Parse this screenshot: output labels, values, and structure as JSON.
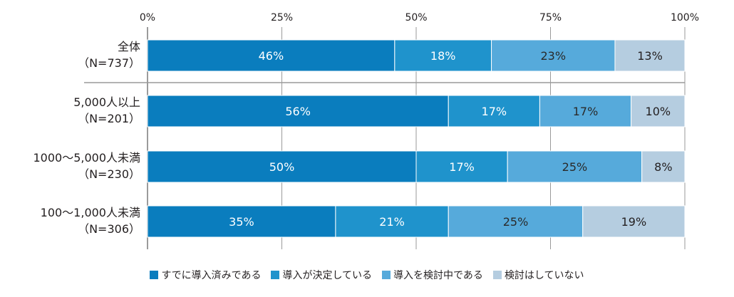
{
  "chart_data": {
    "type": "bar",
    "orientation": "horizontal",
    "stacked": true,
    "xlim": [
      0,
      100
    ],
    "xticks": [
      "0%",
      "25%",
      "50%",
      "75%",
      "100%"
    ],
    "categories": [
      {
        "label": "全体",
        "n": "（N=737）"
      },
      {
        "label": "5,000人以上",
        "n": "（N=201）"
      },
      {
        "label": "1000～5,000人未満",
        "n": "（N=230）"
      },
      {
        "label": "100～1,000人未満",
        "n": "（N=306）"
      }
    ],
    "series": [
      {
        "name": "すでに導入済みである",
        "color": "#0a7dbe",
        "values": [
          46,
          56,
          50,
          35
        ]
      },
      {
        "name": "導入が決定している",
        "color": "#1f93cc",
        "values": [
          18,
          17,
          17,
          21
        ]
      },
      {
        "name": "導入を検討中である",
        "color": "#56aadb",
        "values": [
          23,
          17,
          25,
          25
        ]
      },
      {
        "name": "検討はしていない",
        "color": "#b5cde0",
        "values": [
          13,
          10,
          8,
          19
        ]
      }
    ],
    "grid": true,
    "legend": "bottom"
  }
}
